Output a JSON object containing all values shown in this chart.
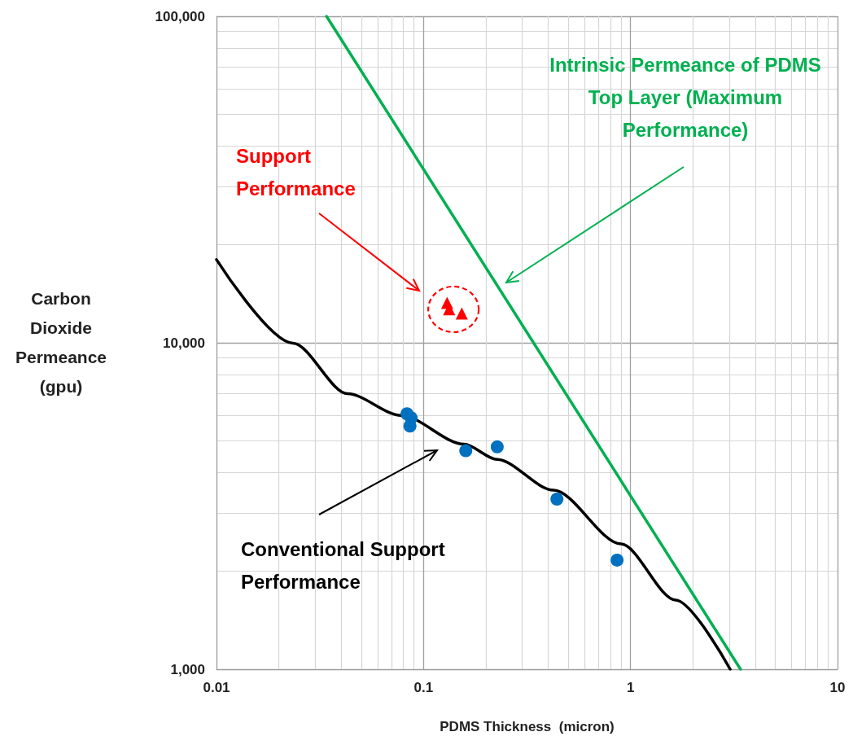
{
  "chart_data": {
    "type": "line",
    "xlabel": "PDMS Thickness  (micron)",
    "ylabel": "Carbon Dioxide Permeance (gpu)",
    "log": "xy",
    "grid": true,
    "marker": "none",
    "xlim": [
      0.01,
      10
    ],
    "xticks": [
      0.01,
      0.1,
      1,
      10
    ],
    "ylim": [
      1000,
      100000
    ],
    "yticks": [
      {
        "value": 1000,
        "label": "1,000"
      },
      {
        "value": 10000,
        "label": "10,000"
      },
      {
        "value": 100000,
        "label": "100,000"
      }
    ],
    "series": [
      {
        "type": "line",
        "color": "#000000",
        "x": [
          0.01,
          0.0234,
          0.043,
          0.078,
          0.157,
          0.227,
          0.425,
          0.9,
          1.65,
          3.03
        ],
        "values": [
          17980,
          9970,
          6980,
          5990,
          4890,
          4390,
          3535,
          2420,
          1630,
          1000
        ]
      },
      {
        "type": "line",
        "color": "#00b050",
        "x": [
          0.034,
          3.4
        ],
        "values": [
          100000,
          1000
        ]
      },
      {
        "type": "scatter",
        "marker": "circle",
        "color": "#0070c0",
        "x": [
          0.0832,
          0.0871,
          0.086,
          0.16,
          0.227,
          0.441,
          0.861
        ],
        "values": [
          6060,
          5890,
          5560,
          4670,
          4800,
          3320,
          2160
        ]
      },
      {
        "type": "scatter",
        "marker": "triangle",
        "color": "#ff0000",
        "x": [
          0.13,
          0.133,
          0.153
        ],
        "values": [
          13240,
          12680,
          12300
        ]
      }
    ],
    "annotations": [
      "Support Performance",
      "Intrinsic Permeance of PDMS Top Layer (Maximum Performance)",
      "Conventional Support Performance"
    ]
  }
}
